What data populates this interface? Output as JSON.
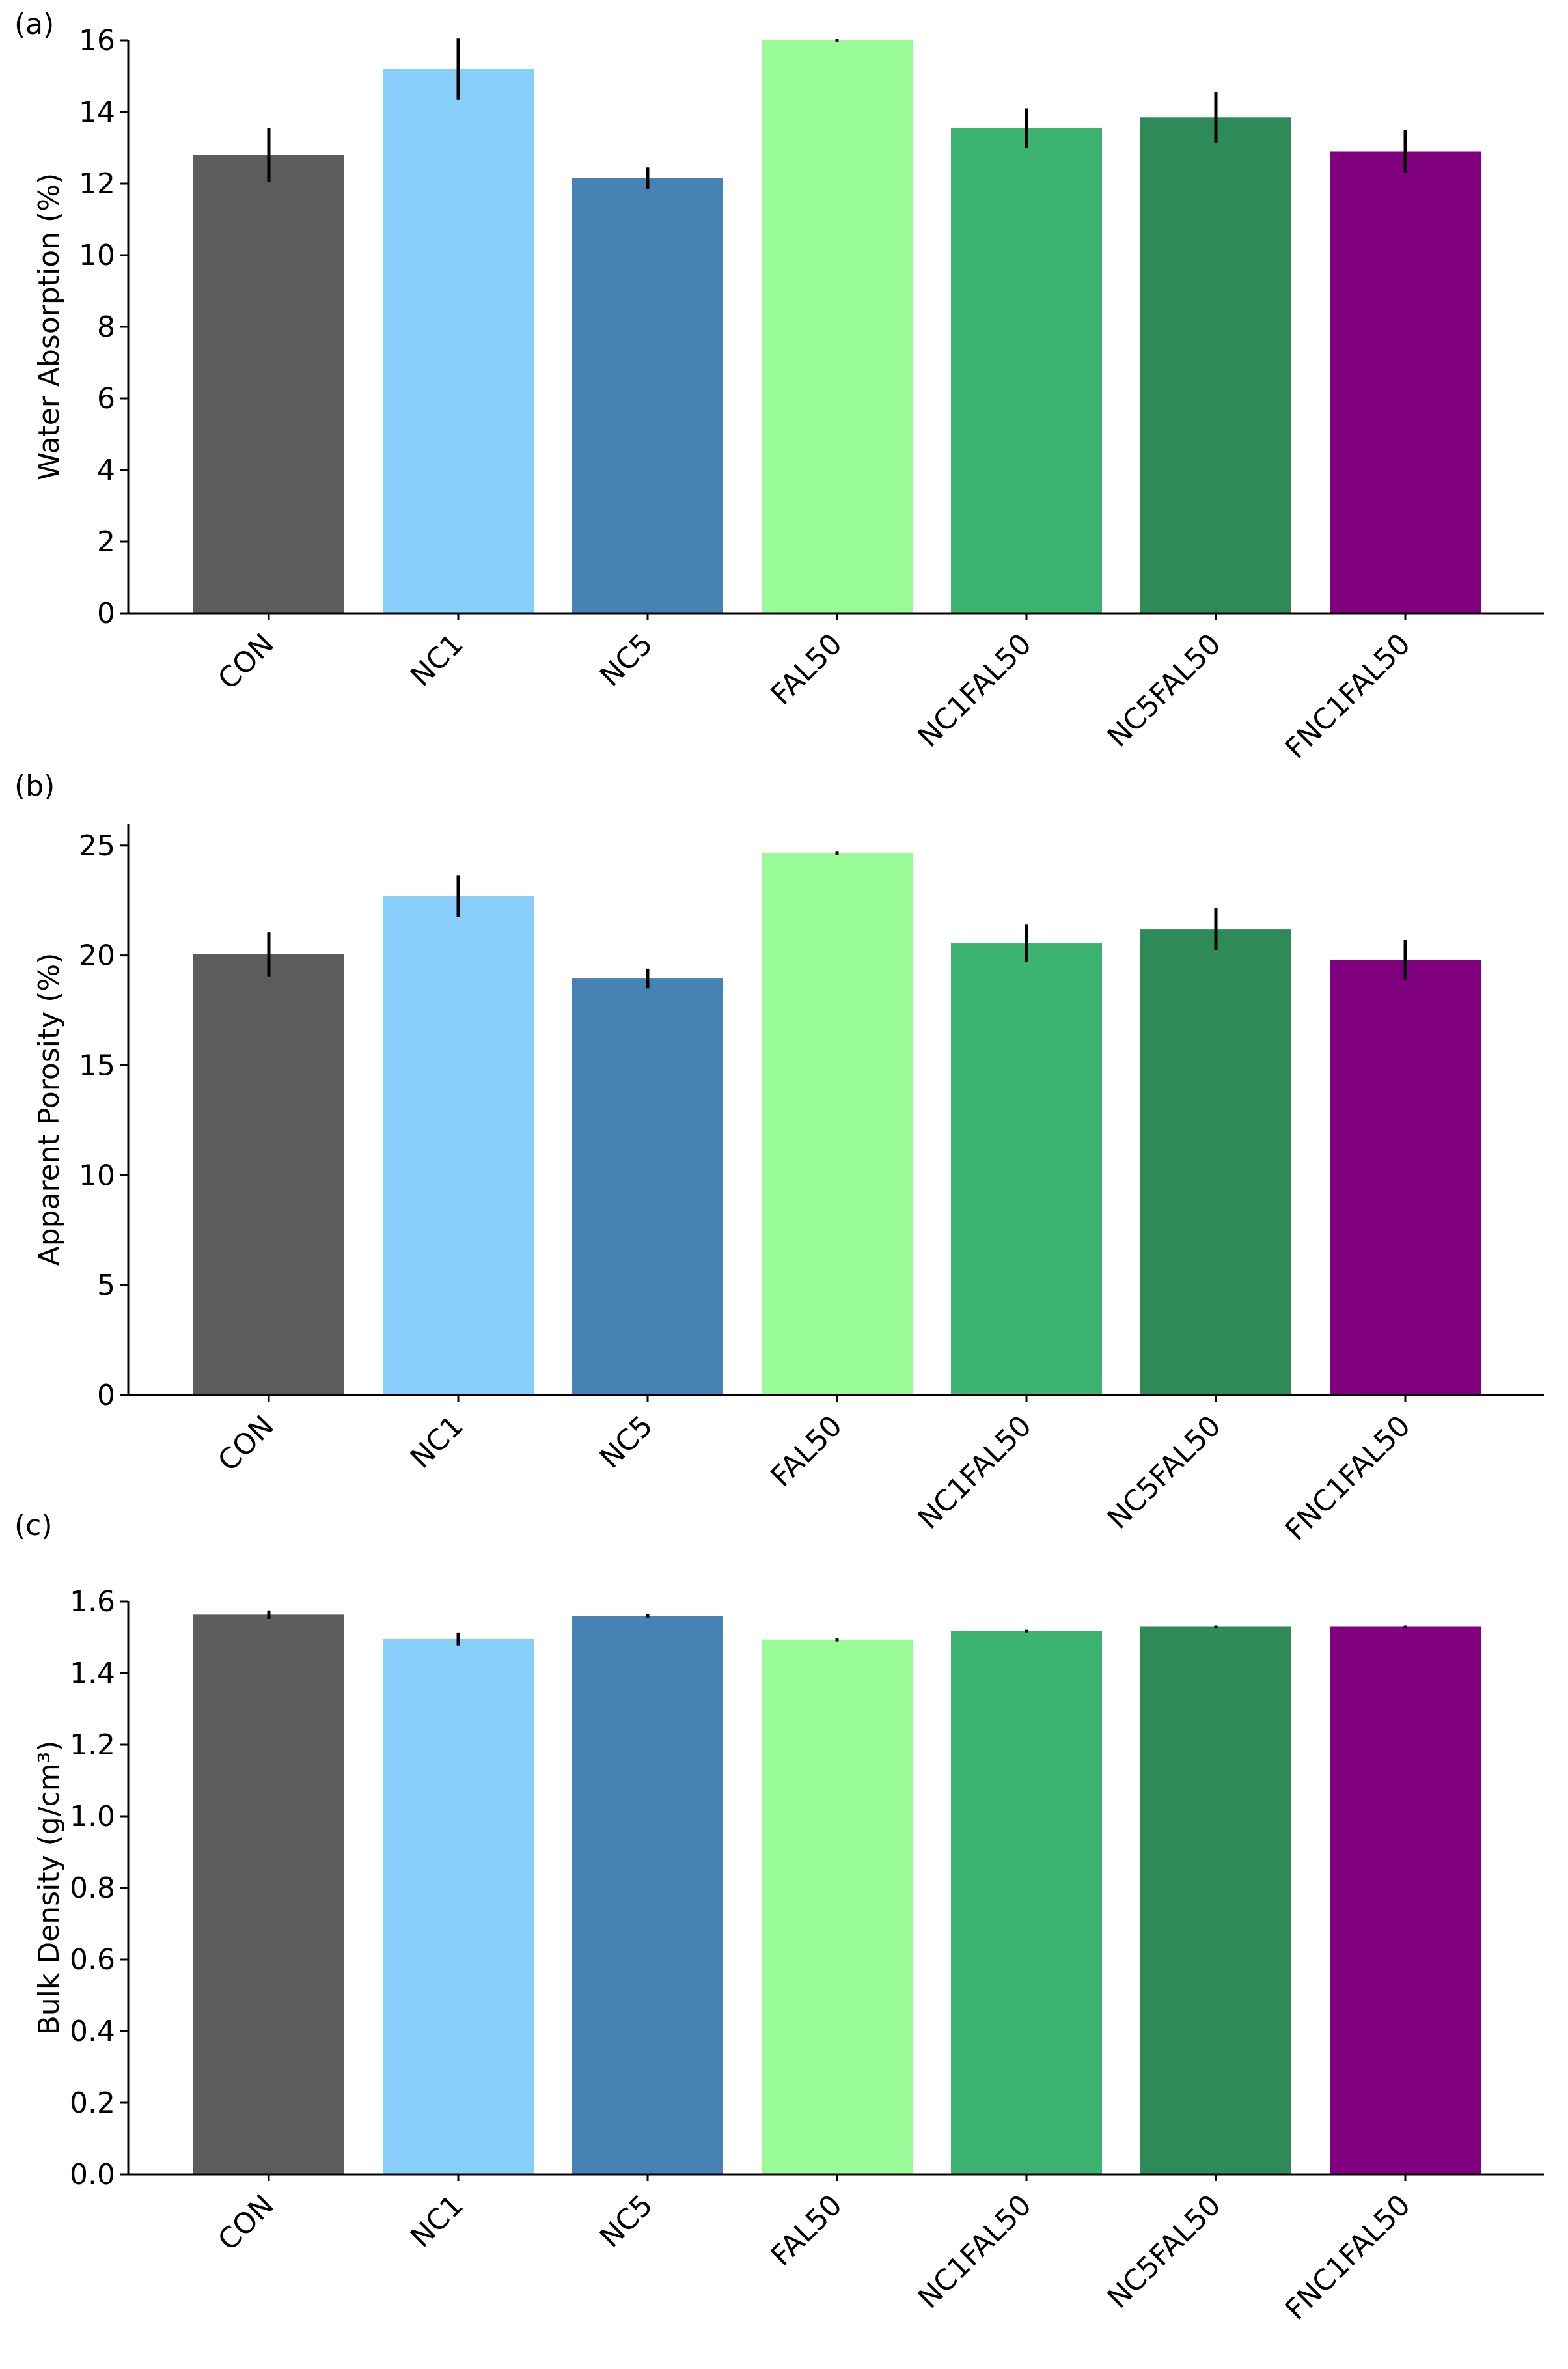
{
  "colors": {
    "CON": "#5c5c5c",
    "NC1": "#87cefa",
    "NC5": "#4682b4",
    "FAL50": "#98fb98",
    "NC1FAL50": "#3cb371",
    "NC5FAL50": "#2e8b57",
    "FNC1FAL50": "#800080",
    "errorbar": "#000000",
    "axis": "#000000"
  },
  "chart_data": [
    {
      "type": "bar",
      "panel_label": "(a)",
      "title": "",
      "xlabel": "",
      "ylabel": "Water Absorption (%)",
      "ylim": [
        0,
        16
      ],
      "yticks": [
        0,
        2,
        4,
        6,
        8,
        10,
        12,
        14,
        16
      ],
      "ytick_labels": [
        "0",
        "2",
        "4",
        "6",
        "8",
        "10",
        "12",
        "14",
        "16"
      ],
      "categories": [
        "CON",
        "NC1",
        "NC5",
        "FAL50",
        "NC1FAL50",
        "NC5FAL50",
        "FNC1FAL50"
      ],
      "values": [
        12.8,
        15.2,
        12.15,
        16.0,
        13.55,
        13.85,
        12.9
      ],
      "errors": [
        0.75,
        0.85,
        0.3,
        0.0,
        0.55,
        0.7,
        0.6
      ],
      "grid": false
    },
    {
      "type": "bar",
      "panel_label": "(b)",
      "title": "",
      "xlabel": "",
      "ylabel": "Apparent Porosity (%)",
      "ylim": [
        0,
        26
      ],
      "yticks": [
        0,
        5,
        10,
        15,
        20,
        25
      ],
      "ytick_labels": [
        "0",
        "5",
        "10",
        "15",
        "20",
        "25"
      ],
      "categories": [
        "CON",
        "NC1",
        "NC5",
        "FAL50",
        "NC1FAL50",
        "NC5FAL50",
        "FNC1FAL50"
      ],
      "values": [
        20.05,
        22.7,
        18.95,
        24.65,
        20.55,
        21.2,
        19.8
      ],
      "errors": [
        1.0,
        0.95,
        0.45,
        0.1,
        0.85,
        0.95,
        0.9
      ],
      "grid": false
    },
    {
      "type": "bar",
      "panel_label": "(c)",
      "title": "",
      "xlabel": "",
      "ylabel": "Bulk Density (g/cm³)",
      "ylim": [
        0,
        1.6
      ],
      "yticks": [
        0,
        0.2,
        0.4,
        0.6,
        0.8,
        1.0,
        1.2,
        1.4,
        1.6
      ],
      "ytick_labels": [
        "0.0",
        "0.2",
        "0.4",
        "0.6",
        "0.8",
        "1.0",
        "1.2",
        "1.4",
        "1.6"
      ],
      "categories": [
        "CON",
        "NC1",
        "NC5",
        "FAL50",
        "NC1FAL50",
        "NC5FAL50",
        "FNC1FAL50"
      ],
      "values": [
        1.563,
        1.495,
        1.56,
        1.493,
        1.517,
        1.53,
        1.53
      ],
      "errors": [
        0.012,
        0.018,
        0.005,
        0.005,
        0.003,
        0.003,
        0.003
      ],
      "grid": false
    }
  ]
}
